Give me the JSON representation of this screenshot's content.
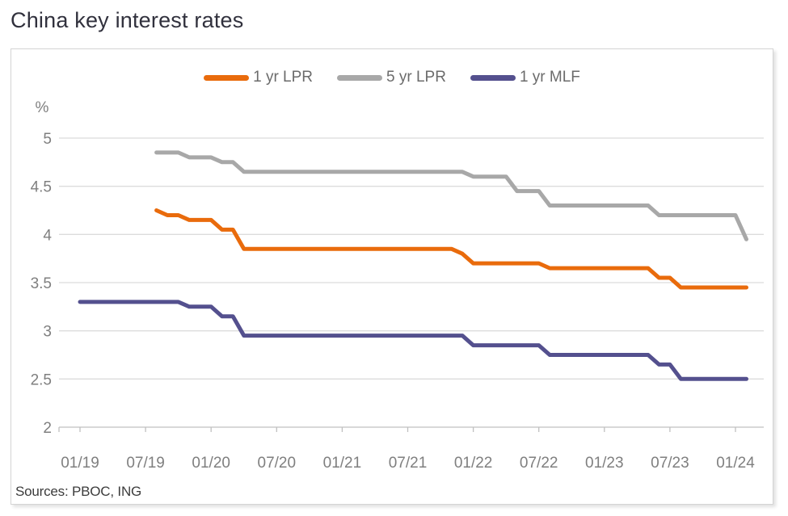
{
  "title": "China key interest rates",
  "source_note": "Sources: PBOC, ING",
  "colors": {
    "lpr1": "#e96b0c",
    "lpr5": "#a8a8a8",
    "mlf": "#54508e",
    "grid": "#dcdcdc",
    "axis": "#c0c0c0",
    "tick_label": "#7f7f7f",
    "legend_text": "#6b6b6b",
    "title_text": "#31313d",
    "source_text": "#3c3c3c",
    "panel_border": "#d4d4d4"
  },
  "chart_data": {
    "type": "line",
    "title": "China key interest rates",
    "unit_label": "%",
    "xlabel": "",
    "ylabel": "%",
    "ylim": [
      2,
      5
    ],
    "yticks": [
      2,
      2.5,
      3,
      3.5,
      4,
      4.5,
      5
    ],
    "xtick_labels": [
      "01/19",
      "07/19",
      "01/20",
      "07/20",
      "01/21",
      "07/21",
      "01/22",
      "07/22",
      "01/23",
      "07/23",
      "01/24"
    ],
    "x_start": "2019-01",
    "x_end": "2024-02",
    "grid": "horizontal",
    "legend_position": "top-center",
    "series": [
      {
        "name": "1 yr LPR",
        "color": "#e96b0c",
        "steps": [
          [
            "2019-08",
            4.25
          ],
          [
            "2019-09",
            4.2
          ],
          [
            "2019-11",
            4.15
          ],
          [
            "2020-02",
            4.05
          ],
          [
            "2020-04",
            3.85
          ],
          [
            "2021-12",
            3.8
          ],
          [
            "2022-01",
            3.7
          ],
          [
            "2022-08",
            3.65
          ],
          [
            "2023-06",
            3.55
          ],
          [
            "2023-08",
            3.45
          ]
        ]
      },
      {
        "name": "5 yr LPR",
        "color": "#a8a8a8",
        "steps": [
          [
            "2019-08",
            4.85
          ],
          [
            "2019-11",
            4.8
          ],
          [
            "2020-02",
            4.75
          ],
          [
            "2020-04",
            4.65
          ],
          [
            "2022-01",
            4.6
          ],
          [
            "2022-05",
            4.45
          ],
          [
            "2022-08",
            4.3
          ],
          [
            "2023-06",
            4.2
          ],
          [
            "2024-02",
            3.95
          ]
        ]
      },
      {
        "name": "1 yr MLF",
        "color": "#54508e",
        "steps": [
          [
            "2019-01",
            3.3
          ],
          [
            "2019-11",
            3.25
          ],
          [
            "2020-02",
            3.15
          ],
          [
            "2020-04",
            2.95
          ],
          [
            "2022-01",
            2.85
          ],
          [
            "2022-08",
            2.75
          ],
          [
            "2023-06",
            2.65
          ],
          [
            "2023-08",
            2.5
          ]
        ]
      }
    ]
  }
}
